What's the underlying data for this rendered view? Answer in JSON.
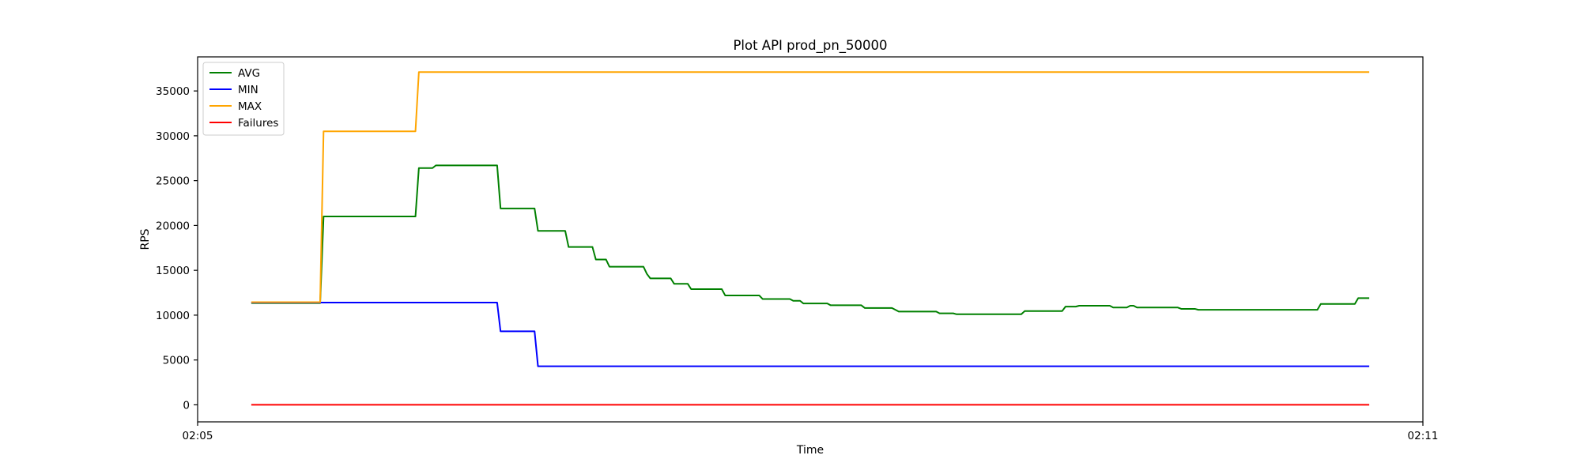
{
  "chart_data": {
    "type": "line",
    "title": "Plot API prod_pn_50000",
    "xlabel": "Time",
    "ylabel": "RPS",
    "x_unit": "seconds after 02:05",
    "xlim": [
      0,
      360
    ],
    "ylim": [
      -1900,
      38800
    ],
    "x_ticks": [
      {
        "value": 0,
        "label": "02:05"
      },
      {
        "value": 360,
        "label": "02:11"
      }
    ],
    "y_ticks": [
      0,
      5000,
      10000,
      15000,
      20000,
      25000,
      30000,
      35000
    ],
    "grid": false,
    "legend_position": "top-left",
    "series": [
      {
        "name": "AVG",
        "color": "#008000",
        "points": [
          [
            16,
            11350
          ],
          [
            36,
            11350
          ],
          [
            37,
            21000
          ],
          [
            64,
            21000
          ],
          [
            65,
            26400
          ],
          [
            69,
            26400
          ],
          [
            70,
            26700
          ],
          [
            88,
            26700
          ],
          [
            89,
            21900
          ],
          [
            99,
            21900
          ],
          [
            100,
            19400
          ],
          [
            108,
            19400
          ],
          [
            109,
            17600
          ],
          [
            116,
            17600
          ],
          [
            117,
            16200
          ],
          [
            120,
            16200
          ],
          [
            121,
            15400
          ],
          [
            131,
            15400
          ],
          [
            132,
            14600
          ],
          [
            133,
            14100
          ],
          [
            139,
            14100
          ],
          [
            140,
            13500
          ],
          [
            144,
            13500
          ],
          [
            145,
            12900
          ],
          [
            154,
            12900
          ],
          [
            155,
            12200
          ],
          [
            165,
            12200
          ],
          [
            166,
            11800
          ],
          [
            174,
            11800
          ],
          [
            175,
            11600
          ],
          [
            177,
            11600
          ],
          [
            178,
            11300
          ],
          [
            185,
            11300
          ],
          [
            186,
            11100
          ],
          [
            195,
            11100
          ],
          [
            196,
            10800
          ],
          [
            204,
            10800
          ],
          [
            205,
            10600
          ],
          [
            206,
            10400
          ],
          [
            217,
            10400
          ],
          [
            218,
            10200
          ],
          [
            222,
            10200
          ],
          [
            223,
            10100
          ],
          [
            242,
            10100
          ],
          [
            243,
            10450
          ],
          [
            254,
            10450
          ],
          [
            255,
            10950
          ],
          [
            258,
            10950
          ],
          [
            259,
            11050
          ],
          [
            268,
            11050
          ],
          [
            269,
            10850
          ],
          [
            273,
            10850
          ],
          [
            274,
            11050
          ],
          [
            275,
            11050
          ],
          [
            276,
            10850
          ],
          [
            288,
            10850
          ],
          [
            289,
            10700
          ],
          [
            293,
            10700
          ],
          [
            294,
            10600
          ],
          [
            329,
            10600
          ],
          [
            330,
            11250
          ],
          [
            340,
            11250
          ],
          [
            341,
            11900
          ],
          [
            344,
            11900
          ]
        ]
      },
      {
        "name": "MIN",
        "color": "#0000ff",
        "points": [
          [
            16,
            11400
          ],
          [
            88,
            11400
          ],
          [
            89,
            8200
          ],
          [
            99,
            8200
          ],
          [
            100,
            4300
          ],
          [
            344,
            4300
          ]
        ]
      },
      {
        "name": "MAX",
        "color": "#ffa500",
        "points": [
          [
            16,
            11450
          ],
          [
            36,
            11450
          ],
          [
            37,
            30500
          ],
          [
            64,
            30500
          ],
          [
            65,
            37100
          ],
          [
            344,
            37100
          ]
        ]
      },
      {
        "name": "Failures",
        "color": "#ff0000",
        "points": [
          [
            16,
            0
          ],
          [
            344,
            0
          ]
        ]
      }
    ]
  }
}
